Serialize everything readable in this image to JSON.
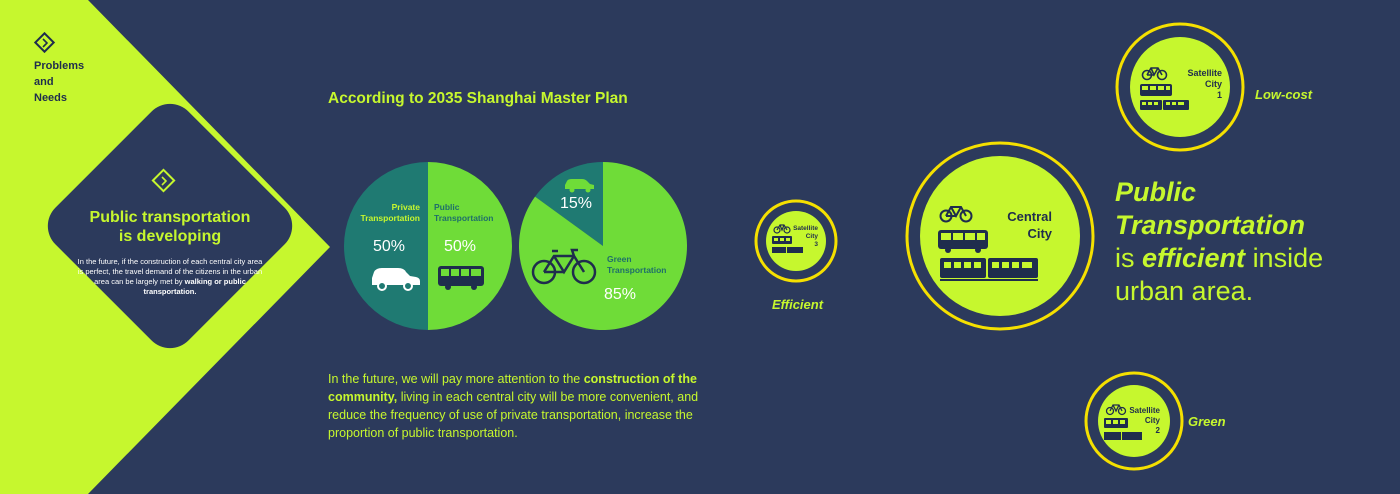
{
  "tag": {
    "line1": "Problems",
    "line2": "and",
    "line3": "Needs"
  },
  "card": {
    "title_line1": "Public transportation",
    "title_line2": "is developing",
    "body_prefix": "In the future, if the construction of each central city area is perfect, the travel demand of the citizens in the urban area can be largely met by",
    "body_bold": "walking or public transportation."
  },
  "heading": "According to 2035 Shanghai Master Plan",
  "paragraph": {
    "part1": "In the future, we will pay more attention to the",
    "bold": "construction of the community,",
    "part2": "living in each central city will be more convenient, and reduce the frequency of use of private transportation, increase the proportion of public transportation."
  },
  "chart_data": [
    {
      "type": "pie",
      "categories": [
        "Private Transportation",
        "Public Transportation"
      ],
      "values": [
        50,
        50
      ],
      "labels": [
        "50%",
        "50%"
      ],
      "colors": [
        "#1f7a72",
        "#6fdc38"
      ]
    },
    {
      "type": "pie",
      "categories": [
        "Private Transportation",
        "Green Transportation"
      ],
      "values": [
        15,
        85
      ],
      "labels": [
        "15%",
        "85%"
      ],
      "colors": [
        "#1f7a72",
        "#6fdc38"
      ]
    }
  ],
  "pie_text": {
    "private_l1": "Private",
    "private_l2": "Transportation",
    "public_l1": "Public",
    "public_l2": "Transportation",
    "green_l1": "Green",
    "green_l2": "Transportation"
  },
  "diagram": {
    "central": {
      "line1": "Central",
      "line2": "City"
    },
    "sat1": {
      "line1": "Satellite",
      "line2": "City",
      "num": "1"
    },
    "sat2": {
      "line1": "Satellite",
      "line2": "City",
      "num": "2"
    },
    "sat3": {
      "line1": "Satellite",
      "line2": "City",
      "num": "3"
    },
    "low_cost": "Low-cost",
    "green": "Green",
    "efficient": "Efficient"
  },
  "statement": {
    "line1": "Public",
    "line2": "Transportation",
    "line3_pre": "is",
    "line3_em": "efficient",
    "line3_post": "inside",
    "line4": "urban area."
  },
  "colors": {
    "background": "#2c3a5c",
    "accent": "#c6f72e",
    "teal": "#1f7a72",
    "green": "#6fdc38",
    "ring": "#f5e000"
  }
}
